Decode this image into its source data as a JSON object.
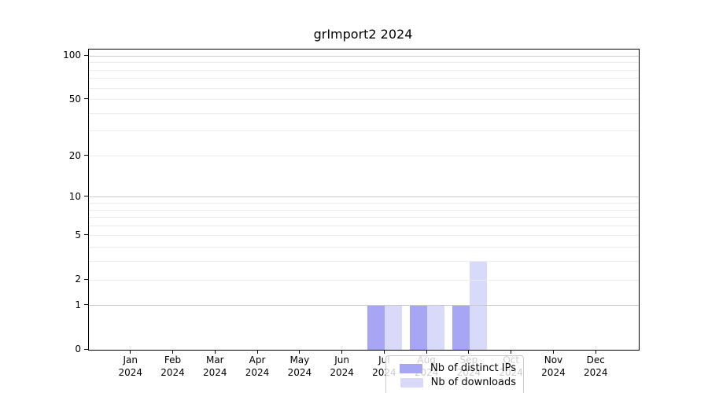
{
  "chart_data": {
    "type": "bar",
    "title": "grImport2 2024",
    "categories": [
      "Jan",
      "Feb",
      "Mar",
      "Apr",
      "May",
      "Jun",
      "Jul",
      "Aug",
      "Sep",
      "Oct",
      "Nov",
      "Dec"
    ],
    "category_year": "2024",
    "series": [
      {
        "name": "Nb of distinct IPs",
        "color": "#a6a6f5",
        "values": [
          0,
          0,
          0,
          0,
          0,
          0,
          1,
          1,
          1,
          0,
          0,
          0
        ]
      },
      {
        "name": "Nb of downloads",
        "color": "#d9d9f9",
        "values": [
          0,
          0,
          0,
          0,
          0,
          0,
          1,
          1,
          3,
          0,
          0,
          0
        ]
      }
    ],
    "xlabel": "",
    "ylabel": "",
    "scale": "log1p",
    "ylim": [
      0,
      111
    ],
    "yticks": [
      0,
      1,
      2,
      5,
      10,
      20,
      50,
      100
    ],
    "major_gridline_values": [
      1,
      10,
      100
    ],
    "minor_gridline_values": [
      2,
      3,
      4,
      5,
      6,
      7,
      8,
      9,
      20,
      30,
      40,
      50,
      60,
      70,
      80,
      90
    ],
    "grid": "on",
    "legend_position": "inside-bottom-center",
    "colors": {
      "axis": "#000000",
      "grid_major": "#c9c9c9",
      "grid_minor": "#ececec",
      "background": "#ffffff",
      "legend_border": "#cccccc"
    }
  }
}
